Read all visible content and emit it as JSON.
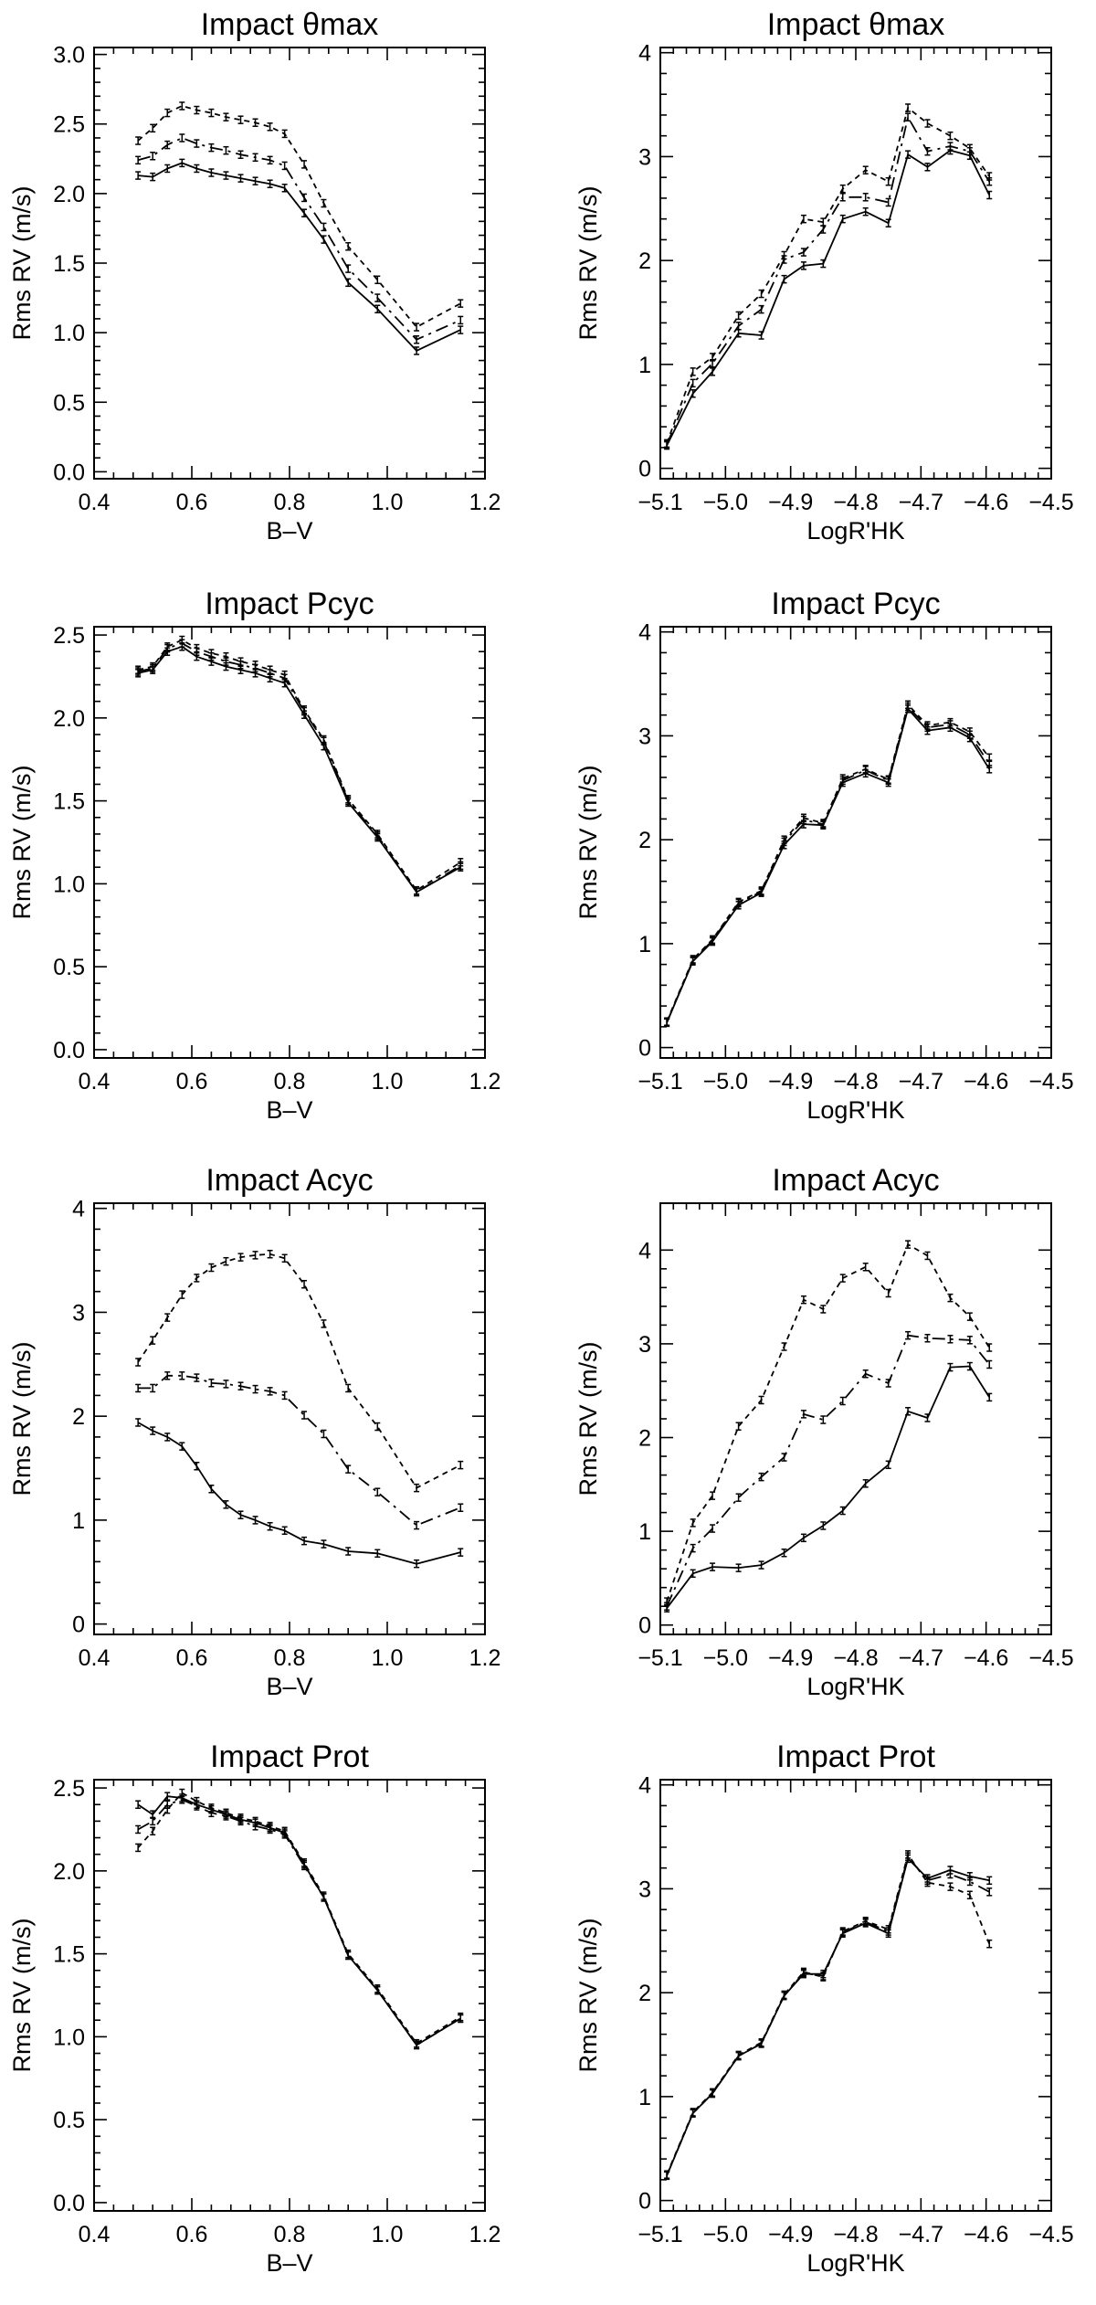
{
  "chart_data": [
    {
      "type": "line",
      "title": "Impact θmax",
      "xlabel": "B–V",
      "ylabel": "Rms RV (m/s)",
      "xlim": [
        0.4,
        1.2
      ],
      "ylim": [
        -0.05,
        3.05
      ],
      "xticks": [
        0.4,
        0.6,
        0.8,
        1.0,
        1.2
      ],
      "xtick_labels": [
        "0.4",
        "0.6",
        "0.8",
        "1.0",
        "1.2"
      ],
      "yticks": [
        0.0,
        0.5,
        1.0,
        1.5,
        2.0,
        2.5,
        3.0
      ],
      "ytick_labels": [
        "0.0",
        "0.5",
        "1.0",
        "1.5",
        "2.0",
        "2.5",
        "3.0"
      ],
      "x": [
        0.49,
        0.52,
        0.55,
        0.58,
        0.61,
        0.64,
        0.67,
        0.7,
        0.73,
        0.76,
        0.79,
        0.83,
        0.87,
        0.92,
        0.98,
        1.06,
        1.15
      ],
      "series": [
        {
          "style": "solid",
          "values": [
            2.13,
            2.12,
            2.18,
            2.22,
            2.18,
            2.15,
            2.13,
            2.11,
            2.09,
            2.07,
            2.04,
            1.86,
            1.67,
            1.36,
            1.17,
            0.87,
            1.02
          ]
        },
        {
          "style": "dashdot",
          "values": [
            2.24,
            2.27,
            2.35,
            2.4,
            2.36,
            2.33,
            2.31,
            2.28,
            2.26,
            2.24,
            2.2,
            1.97,
            1.76,
            1.46,
            1.25,
            0.95,
            1.09
          ]
        },
        {
          "style": "dashed",
          "values": [
            2.38,
            2.47,
            2.58,
            2.63,
            2.6,
            2.58,
            2.55,
            2.53,
            2.51,
            2.48,
            2.43,
            2.21,
            1.93,
            1.62,
            1.38,
            1.04,
            1.21
          ]
        }
      ]
    },
    {
      "type": "line",
      "title": "Impact θmax",
      "xlabel": "LogR'HK",
      "ylabel": "Rms RV (m/s)",
      "xlim": [
        -5.1,
        -4.5
      ],
      "ylim": [
        -0.1,
        4.05
      ],
      "xticks": [
        -5.1,
        -5.0,
        -4.9,
        -4.8,
        -4.7,
        -4.6,
        -4.5
      ],
      "xtick_labels": [
        "−5.1",
        "−5.0",
        "−4.9",
        "−4.8",
        "−4.7",
        "−4.6",
        "−4.5"
      ],
      "yticks": [
        0,
        1,
        2,
        3,
        4
      ],
      "ytick_labels": [
        "0",
        "1",
        "2",
        "3",
        "4"
      ],
      "x": [
        -5.09,
        -5.05,
        -5.02,
        -4.98,
        -4.945,
        -4.91,
        -4.88,
        -4.85,
        -4.82,
        -4.785,
        -4.75,
        -4.72,
        -4.69,
        -4.655,
        -4.625,
        -4.595
      ],
      "series": [
        {
          "style": "solid",
          "values": [
            0.22,
            0.72,
            0.93,
            1.3,
            1.28,
            1.82,
            1.95,
            1.97,
            2.4,
            2.47,
            2.36,
            3.02,
            2.9,
            3.06,
            3.01,
            2.63
          ]
        },
        {
          "style": "dashdot",
          "values": [
            0.23,
            0.82,
            1.01,
            1.37,
            1.53,
            2.01,
            2.08,
            2.3,
            2.61,
            2.61,
            2.56,
            3.38,
            3.05,
            3.1,
            3.05,
            2.76
          ]
        },
        {
          "style": "dashed",
          "values": [
            0.24,
            0.93,
            1.07,
            1.47,
            1.68,
            2.05,
            2.4,
            2.37,
            2.69,
            2.87,
            2.76,
            3.47,
            3.32,
            3.2,
            3.08,
            2.81
          ]
        }
      ]
    },
    {
      "type": "line",
      "title": "Impact Pcyc",
      "xlabel": "B–V",
      "ylabel": "Rms RV (m/s)",
      "xlim": [
        0.4,
        1.2
      ],
      "ylim": [
        -0.05,
        2.55
      ],
      "xticks": [
        0.4,
        0.6,
        0.8,
        1.0,
        1.2
      ],
      "xtick_labels": [
        "0.4",
        "0.6",
        "0.8",
        "1.0",
        "1.2"
      ],
      "yticks": [
        0.0,
        0.5,
        1.0,
        1.5,
        2.0,
        2.5
      ],
      "ytick_labels": [
        "0.0",
        "0.5",
        "1.0",
        "1.5",
        "2.0",
        "2.5"
      ],
      "x": [
        0.49,
        0.52,
        0.55,
        0.58,
        0.61,
        0.64,
        0.67,
        0.7,
        0.73,
        0.76,
        0.79,
        0.83,
        0.87,
        0.92,
        0.98,
        1.06,
        1.15
      ],
      "series": [
        {
          "style": "solid",
          "values": [
            2.27,
            2.29,
            2.4,
            2.43,
            2.37,
            2.34,
            2.31,
            2.29,
            2.27,
            2.24,
            2.21,
            2.02,
            1.83,
            1.49,
            1.28,
            0.95,
            1.1
          ]
        },
        {
          "style": "dashdot",
          "values": [
            2.28,
            2.3,
            2.42,
            2.45,
            2.4,
            2.37,
            2.34,
            2.32,
            2.3,
            2.27,
            2.24,
            2.04,
            1.86,
            1.5,
            1.29,
            0.95,
            1.11
          ]
        },
        {
          "style": "dashed",
          "values": [
            2.29,
            2.31,
            2.43,
            2.47,
            2.42,
            2.39,
            2.37,
            2.34,
            2.32,
            2.29,
            2.26,
            2.05,
            1.87,
            1.51,
            1.3,
            0.96,
            1.13
          ]
        }
      ]
    },
    {
      "type": "line",
      "title": "Impact Pcyc",
      "xlabel": "LogR'HK",
      "ylabel": "Rms RV (m/s)",
      "xlim": [
        -5.1,
        -4.5
      ],
      "ylim": [
        -0.1,
        4.05
      ],
      "xticks": [
        -5.1,
        -5.0,
        -4.9,
        -4.8,
        -4.7,
        -4.6,
        -4.5
      ],
      "xtick_labels": [
        "−5.1",
        "−5.0",
        "−4.9",
        "−4.8",
        "−4.7",
        "−4.6",
        "−4.5"
      ],
      "yticks": [
        0,
        1,
        2,
        3,
        4
      ],
      "ytick_labels": [
        "0",
        "1",
        "2",
        "3",
        "4"
      ],
      "x": [
        -5.09,
        -5.05,
        -5.02,
        -4.98,
        -4.945,
        -4.91,
        -4.88,
        -4.85,
        -4.82,
        -4.785,
        -4.75,
        -4.72,
        -4.69,
        -4.655,
        -4.625,
        -4.595
      ],
      "series": [
        {
          "style": "solid",
          "values": [
            0.24,
            0.83,
            1.02,
            1.37,
            1.49,
            1.95,
            2.15,
            2.14,
            2.55,
            2.64,
            2.55,
            3.26,
            3.05,
            3.08,
            2.98,
            2.68
          ]
        },
        {
          "style": "dashdot",
          "values": [
            0.24,
            0.84,
            1.03,
            1.39,
            1.5,
            1.98,
            2.19,
            2.15,
            2.57,
            2.67,
            2.57,
            3.28,
            3.08,
            3.11,
            3.01,
            2.73
          ]
        },
        {
          "style": "dashed",
          "values": [
            0.25,
            0.85,
            1.04,
            1.4,
            1.51,
            2.0,
            2.21,
            2.16,
            2.59,
            2.68,
            2.58,
            3.3,
            3.1,
            3.13,
            3.04,
            2.79
          ]
        }
      ]
    },
    {
      "type": "line",
      "title": "Impact Acyc",
      "xlabel": "B–V",
      "ylabel": "Rms RV (m/s)",
      "xlim": [
        0.4,
        1.2
      ],
      "ylim": [
        -0.1,
        4.05
      ],
      "xticks": [
        0.4,
        0.6,
        0.8,
        1.0,
        1.2
      ],
      "xtick_labels": [
        "0.4",
        "0.6",
        "0.8",
        "1.0",
        "1.2"
      ],
      "yticks": [
        0,
        1,
        2,
        3,
        4
      ],
      "ytick_labels": [
        "0",
        "1",
        "2",
        "3",
        "4"
      ],
      "x": [
        0.49,
        0.52,
        0.55,
        0.58,
        0.61,
        0.64,
        0.67,
        0.7,
        0.73,
        0.76,
        0.79,
        0.83,
        0.87,
        0.92,
        0.98,
        1.06,
        1.15
      ],
      "series": [
        {
          "style": "solid",
          "values": [
            1.94,
            1.86,
            1.8,
            1.71,
            1.52,
            1.3,
            1.15,
            1.05,
            1.0,
            0.94,
            0.9,
            0.8,
            0.77,
            0.7,
            0.68,
            0.58,
            0.69
          ]
        },
        {
          "style": "dashdot",
          "values": [
            2.27,
            2.27,
            2.39,
            2.39,
            2.37,
            2.32,
            2.31,
            2.29,
            2.26,
            2.24,
            2.2,
            2.01,
            1.83,
            1.49,
            1.27,
            0.95,
            1.12
          ]
        },
        {
          "style": "dashed",
          "values": [
            2.52,
            2.73,
            2.95,
            3.17,
            3.33,
            3.43,
            3.49,
            3.53,
            3.55,
            3.56,
            3.52,
            3.27,
            2.89,
            2.27,
            1.9,
            1.31,
            1.53
          ]
        }
      ]
    },
    {
      "type": "line",
      "title": "Impact Acyc",
      "xlabel": "LogR'HK",
      "ylabel": "Rms RV (m/s)",
      "xlim": [
        -5.1,
        -4.5
      ],
      "ylim": [
        -0.1,
        4.5
      ],
      "xticks": [
        -5.1,
        -5.0,
        -4.9,
        -4.8,
        -4.7,
        -4.6,
        -4.5
      ],
      "xtick_labels": [
        "−5.1",
        "−5.0",
        "−4.9",
        "−4.8",
        "−4.7",
        "−4.6",
        "−4.5"
      ],
      "yticks": [
        0,
        1,
        2,
        3,
        4
      ],
      "ytick_labels": [
        "0",
        "1",
        "2",
        "3",
        "4"
      ],
      "x": [
        -5.09,
        -5.05,
        -5.02,
        -4.98,
        -4.945,
        -4.91,
        -4.88,
        -4.85,
        -4.82,
        -4.785,
        -4.75,
        -4.72,
        -4.69,
        -4.655,
        -4.625,
        -4.595
      ],
      "series": [
        {
          "style": "solid",
          "values": [
            0.18,
            0.55,
            0.62,
            0.61,
            0.64,
            0.77,
            0.93,
            1.06,
            1.22,
            1.51,
            1.71,
            2.28,
            2.21,
            2.75,
            2.76,
            2.43
          ]
        },
        {
          "style": "dashdot",
          "values": [
            0.2,
            0.82,
            1.03,
            1.36,
            1.58,
            1.79,
            2.25,
            2.19,
            2.39,
            2.68,
            2.58,
            3.09,
            3.06,
            3.05,
            3.04,
            2.78
          ]
        },
        {
          "style": "dashed",
          "values": [
            0.25,
            1.09,
            1.38,
            2.12,
            2.4,
            2.97,
            3.47,
            3.37,
            3.7,
            3.82,
            3.54,
            4.06,
            3.94,
            3.49,
            3.29,
            2.96
          ]
        }
      ]
    },
    {
      "type": "line",
      "title": "Impact Prot",
      "xlabel": "B–V",
      "ylabel": "Rms RV (m/s)",
      "xlim": [
        0.4,
        1.2
      ],
      "ylim": [
        -0.05,
        2.55
      ],
      "xticks": [
        0.4,
        0.6,
        0.8,
        1.0,
        1.2
      ],
      "xtick_labels": [
        "0.4",
        "0.6",
        "0.8",
        "1.0",
        "1.2"
      ],
      "yticks": [
        0.0,
        0.5,
        1.0,
        1.5,
        2.0,
        2.5
      ],
      "ytick_labels": [
        "0.0",
        "0.5",
        "1.0",
        "1.5",
        "2.0",
        "2.5"
      ],
      "x": [
        0.49,
        0.52,
        0.55,
        0.58,
        0.61,
        0.64,
        0.67,
        0.7,
        0.73,
        0.76,
        0.79,
        0.83,
        0.87,
        0.92,
        0.98,
        1.06,
        1.15
      ],
      "series": [
        {
          "style": "solid",
          "values": [
            2.4,
            2.34,
            2.45,
            2.44,
            2.4,
            2.37,
            2.34,
            2.31,
            2.29,
            2.26,
            2.23,
            2.04,
            1.84,
            1.49,
            1.28,
            0.95,
            1.11
          ]
        },
        {
          "style": "dashdot",
          "values": [
            2.25,
            2.3,
            2.4,
            2.43,
            2.39,
            2.35,
            2.33,
            2.3,
            2.27,
            2.25,
            2.22,
            2.03,
            1.84,
            1.49,
            1.28,
            0.95,
            1.11
          ]
        },
        {
          "style": "dashed",
          "values": [
            2.14,
            2.24,
            2.37,
            2.47,
            2.42,
            2.38,
            2.35,
            2.32,
            2.3,
            2.27,
            2.24,
            2.05,
            1.85,
            1.5,
            1.29,
            0.96,
            1.12
          ]
        }
      ]
    },
    {
      "type": "line",
      "title": "Impact Prot",
      "xlabel": "LogR'HK",
      "ylabel": "Rms RV (m/s)",
      "xlim": [
        -5.1,
        -4.5
      ],
      "ylim": [
        -0.1,
        4.05
      ],
      "xticks": [
        -5.1,
        -5.0,
        -4.9,
        -4.8,
        -4.7,
        -4.6,
        -4.5
      ],
      "xtick_labels": [
        "−5.1",
        "−5.0",
        "−4.9",
        "−4.8",
        "−4.7",
        "−4.6",
        "−4.5"
      ],
      "yticks": [
        0,
        1,
        2,
        3,
        4
      ],
      "ytick_labels": [
        "0",
        "1",
        "2",
        "3",
        "4"
      ],
      "x": [
        -5.09,
        -5.05,
        -5.02,
        -4.98,
        -4.945,
        -4.91,
        -4.88,
        -4.85,
        -4.82,
        -4.785,
        -4.75,
        -4.72,
        -4.69,
        -4.655,
        -4.625,
        -4.595
      ],
      "series": [
        {
          "style": "solid",
          "values": [
            0.24,
            0.84,
            1.03,
            1.39,
            1.51,
            1.97,
            2.18,
            2.18,
            2.57,
            2.67,
            2.57,
            3.29,
            3.1,
            3.18,
            3.12,
            3.08
          ]
        },
        {
          "style": "dashdot",
          "values": [
            0.24,
            0.84,
            1.03,
            1.39,
            1.51,
            1.97,
            2.19,
            2.16,
            2.58,
            2.68,
            2.59,
            3.31,
            3.08,
            3.14,
            3.07,
            2.97
          ]
        },
        {
          "style": "dashed",
          "values": [
            0.25,
            0.85,
            1.04,
            1.4,
            1.52,
            1.98,
            2.2,
            2.15,
            2.59,
            2.69,
            2.61,
            3.33,
            3.06,
            3.02,
            2.94,
            2.47
          ]
        }
      ]
    }
  ]
}
